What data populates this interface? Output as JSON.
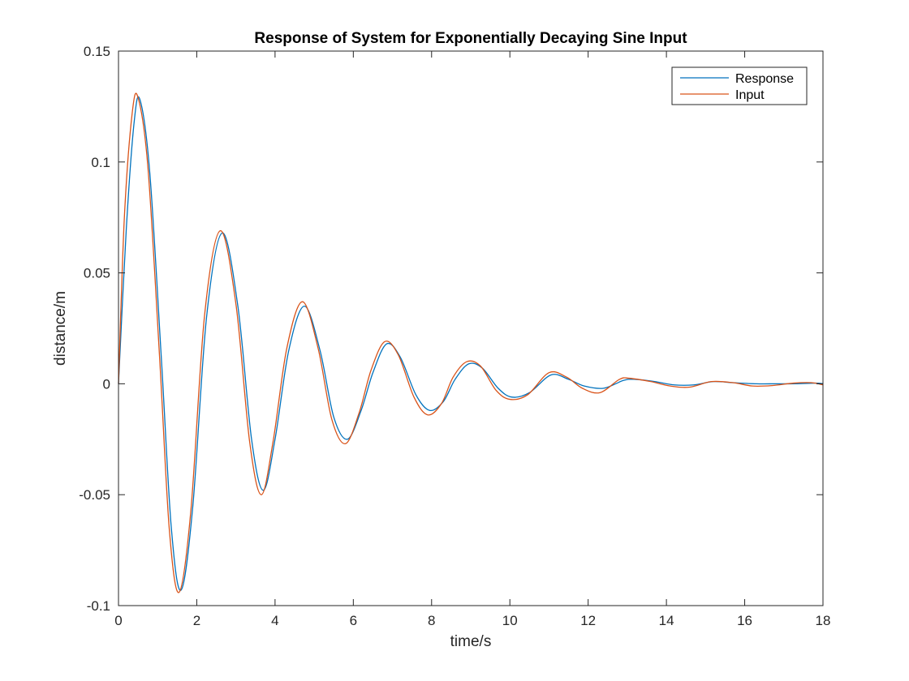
{
  "chart_data": {
    "type": "line",
    "title": "Response of System for Exponentially Decaying Sine Input",
    "xlabel": "time/s",
    "ylabel": "distance/m",
    "xlim": [
      0,
      18
    ],
    "ylim": [
      -0.1,
      0.15
    ],
    "xticks": [
      0,
      2,
      4,
      6,
      8,
      10,
      12,
      14,
      16,
      18
    ],
    "yticks": [
      -0.1,
      -0.05,
      0,
      0.05,
      0.1,
      0.15
    ],
    "xtick_labels": [
      "0",
      "2",
      "4",
      "6",
      "8",
      "10",
      "12",
      "14",
      "16",
      "18"
    ],
    "ytick_labels": [
      "-0.1",
      "-0.05",
      "0",
      "0.05",
      "0.1",
      "0.15"
    ],
    "grid": false,
    "legend_position": "top-right",
    "series": [
      {
        "name": "Response",
        "color": "#0072BD",
        "x": [
          0,
          0.2,
          0.4,
          0.55,
          0.8,
          1.1,
          1.35,
          1.6,
          1.9,
          2.25,
          2.65,
          3.05,
          3.4,
          3.7,
          4.0,
          4.35,
          4.75,
          5.15,
          5.5,
          5.85,
          6.2,
          6.5,
          6.85,
          7.2,
          7.6,
          7.95,
          8.3,
          8.6,
          8.95,
          9.3,
          9.7,
          10.05,
          10.5,
          11.05,
          11.5,
          11.9,
          12.4,
          12.9,
          13.2,
          13.7,
          14.2,
          14.7,
          15.2,
          15.7,
          16.3,
          16.8,
          17.3,
          17.8,
          18
        ],
        "y": [
          0,
          0.07,
          0.118,
          0.128,
          0.095,
          0.01,
          -0.065,
          -0.093,
          -0.055,
          0.03,
          0.068,
          0.035,
          -0.025,
          -0.048,
          -0.025,
          0.015,
          0.035,
          0.015,
          -0.015,
          -0.025,
          -0.012,
          0.005,
          0.018,
          0.012,
          -0.005,
          -0.012,
          -0.008,
          0.002,
          0.009,
          0.007,
          -0.002,
          -0.006,
          -0.004,
          0.004,
          0.002,
          -0.001,
          -0.002,
          0.0015,
          0.002,
          0.001,
          -0.0005,
          -0.0005,
          0.001,
          0.0005,
          0,
          0,
          0,
          0.0003,
          0
        ]
      },
      {
        "name": "Input",
        "color": "#D95319",
        "x": [
          0,
          0.15,
          0.35,
          0.5,
          0.75,
          1.05,
          1.3,
          1.55,
          1.85,
          2.2,
          2.6,
          3.0,
          3.35,
          3.65,
          3.95,
          4.3,
          4.7,
          5.1,
          5.45,
          5.8,
          6.15,
          6.45,
          6.8,
          7.15,
          7.55,
          7.9,
          8.25,
          8.55,
          8.9,
          9.25,
          9.65,
          10.0,
          10.45,
          11.0,
          11.45,
          11.85,
          12.3,
          12.8,
          13.05,
          13.6,
          14.1,
          14.6,
          15.15,
          15.7,
          16.2,
          16.7,
          17.25,
          17.7,
          18
        ],
        "y": [
          0,
          0.075,
          0.122,
          0.129,
          0.098,
          0.012,
          -0.066,
          -0.094,
          -0.057,
          0.031,
          0.069,
          0.036,
          -0.026,
          -0.05,
          -0.026,
          0.016,
          0.037,
          0.016,
          -0.016,
          -0.027,
          -0.013,
          0.006,
          0.019,
          0.013,
          -0.006,
          -0.014,
          -0.009,
          0.003,
          0.01,
          0.008,
          -0.003,
          -0.007,
          -0.005,
          0.005,
          0.003,
          -0.002,
          -0.004,
          0.002,
          0.0025,
          0.001,
          -0.001,
          -0.0015,
          0.001,
          0.0005,
          -0.001,
          -0.0008,
          0.0003,
          0.0005,
          -0.0005
        ]
      }
    ]
  }
}
